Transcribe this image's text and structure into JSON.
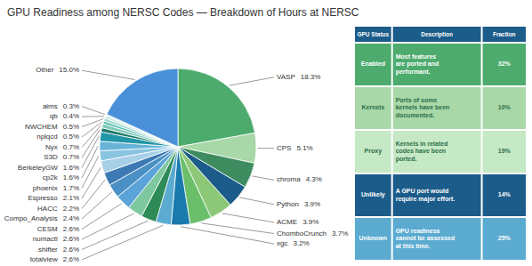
{
  "chart_data": [
    {
      "type": "pie",
      "title": "GPU Readiness among NERSC Codes — Breakdown of Hours at NERSC",
      "categories": [
        "VASP",
        "CPS",
        "chroma",
        "Python",
        "ACME",
        "ChomboCrunch",
        "xgc",
        "totalview",
        "shifter",
        "numactl",
        "CESM",
        "Compo_Analysis",
        "HACC",
        "Espresso",
        "phoenix",
        "cp2k",
        "BerkeleyGW",
        "S3D",
        "Nyx",
        "nplqcd",
        "NWCHEM",
        "qb",
        "aims",
        "Other"
      ],
      "values": [
        18.3,
        5.1,
        4.3,
        3.9,
        3.9,
        3.7,
        3.2,
        2.6,
        2.6,
        2.6,
        2.6,
        2.4,
        2.2,
        2.1,
        1.7,
        1.6,
        1.6,
        0.7,
        0.7,
        0.5,
        0.5,
        0.4,
        0.3,
        15.0
      ],
      "value_labels": [
        "18.3%",
        "5.1%",
        "4.3%",
        "3.9%",
        "3.9%",
        "3.7%",
        "3.2%",
        "2.6%",
        "2.6%",
        "2.6%",
        "2.6%",
        "2.4%",
        "2.2%",
        "2.1%",
        "1.7%",
        "1.6%",
        "1.6%",
        "0.7%",
        "0.7%",
        "0.5%",
        "0.5%",
        "0.4%",
        "0.3%",
        "15.0%"
      ],
      "colors": [
        "#4dab6d",
        "#a8d8a8",
        "#3d8b5e",
        "#1c5c8a",
        "#8dc879",
        "#6bbf6b",
        "#1a7aad",
        "#5baad0",
        "#2e8b57",
        "#7ec8a0",
        "#5ba3d9",
        "#4a90c4",
        "#3d7ab5",
        "#a8cfe8",
        "#89c4e1",
        "#68b3d8",
        "#2196a6",
        "#1d7a6e",
        "#7fc9b8",
        "#5bbfb0",
        "#9dd9d0",
        "#c5e8e3",
        "#e0f3f0",
        "#4a90d9"
      ],
      "data_labels": true
    },
    {
      "type": "table",
      "columns": [
        "GPU Status",
        "Description",
        "Fraction"
      ],
      "header_color": "#1c5c8a",
      "header_text_color": "#ffffff",
      "rows": [
        {
          "cells": [
            "Enabled",
            "Most features\nare ported and\nperformant.",
            "32%"
          ],
          "color": "#4dab6d",
          "text_color": "#ffffff"
        },
        {
          "cells": [
            "Kernels",
            "Ports of some\nkernels have been\ndocumented.",
            "10%"
          ],
          "color": "#a8d8a8",
          "text_color": "#2c6e49"
        },
        {
          "cells": [
            "Proxy",
            "Kernels in related\ncodes have been\nported.",
            "19%"
          ],
          "color": "#c5e8c5",
          "text_color": "#2c6e49"
        },
        {
          "cells": [
            "Unlikely",
            "A GPU port would\nrequire major effort.",
            "14%"
          ],
          "color": "#1c5c8a",
          "text_color": "#ffffff"
        },
        {
          "cells": [
            "Unknown",
            "GPU readiness\ncannot be assessed\nat this time.",
            "25%"
          ],
          "color": "#5baad0",
          "text_color": "#ffffff"
        }
      ]
    }
  ]
}
